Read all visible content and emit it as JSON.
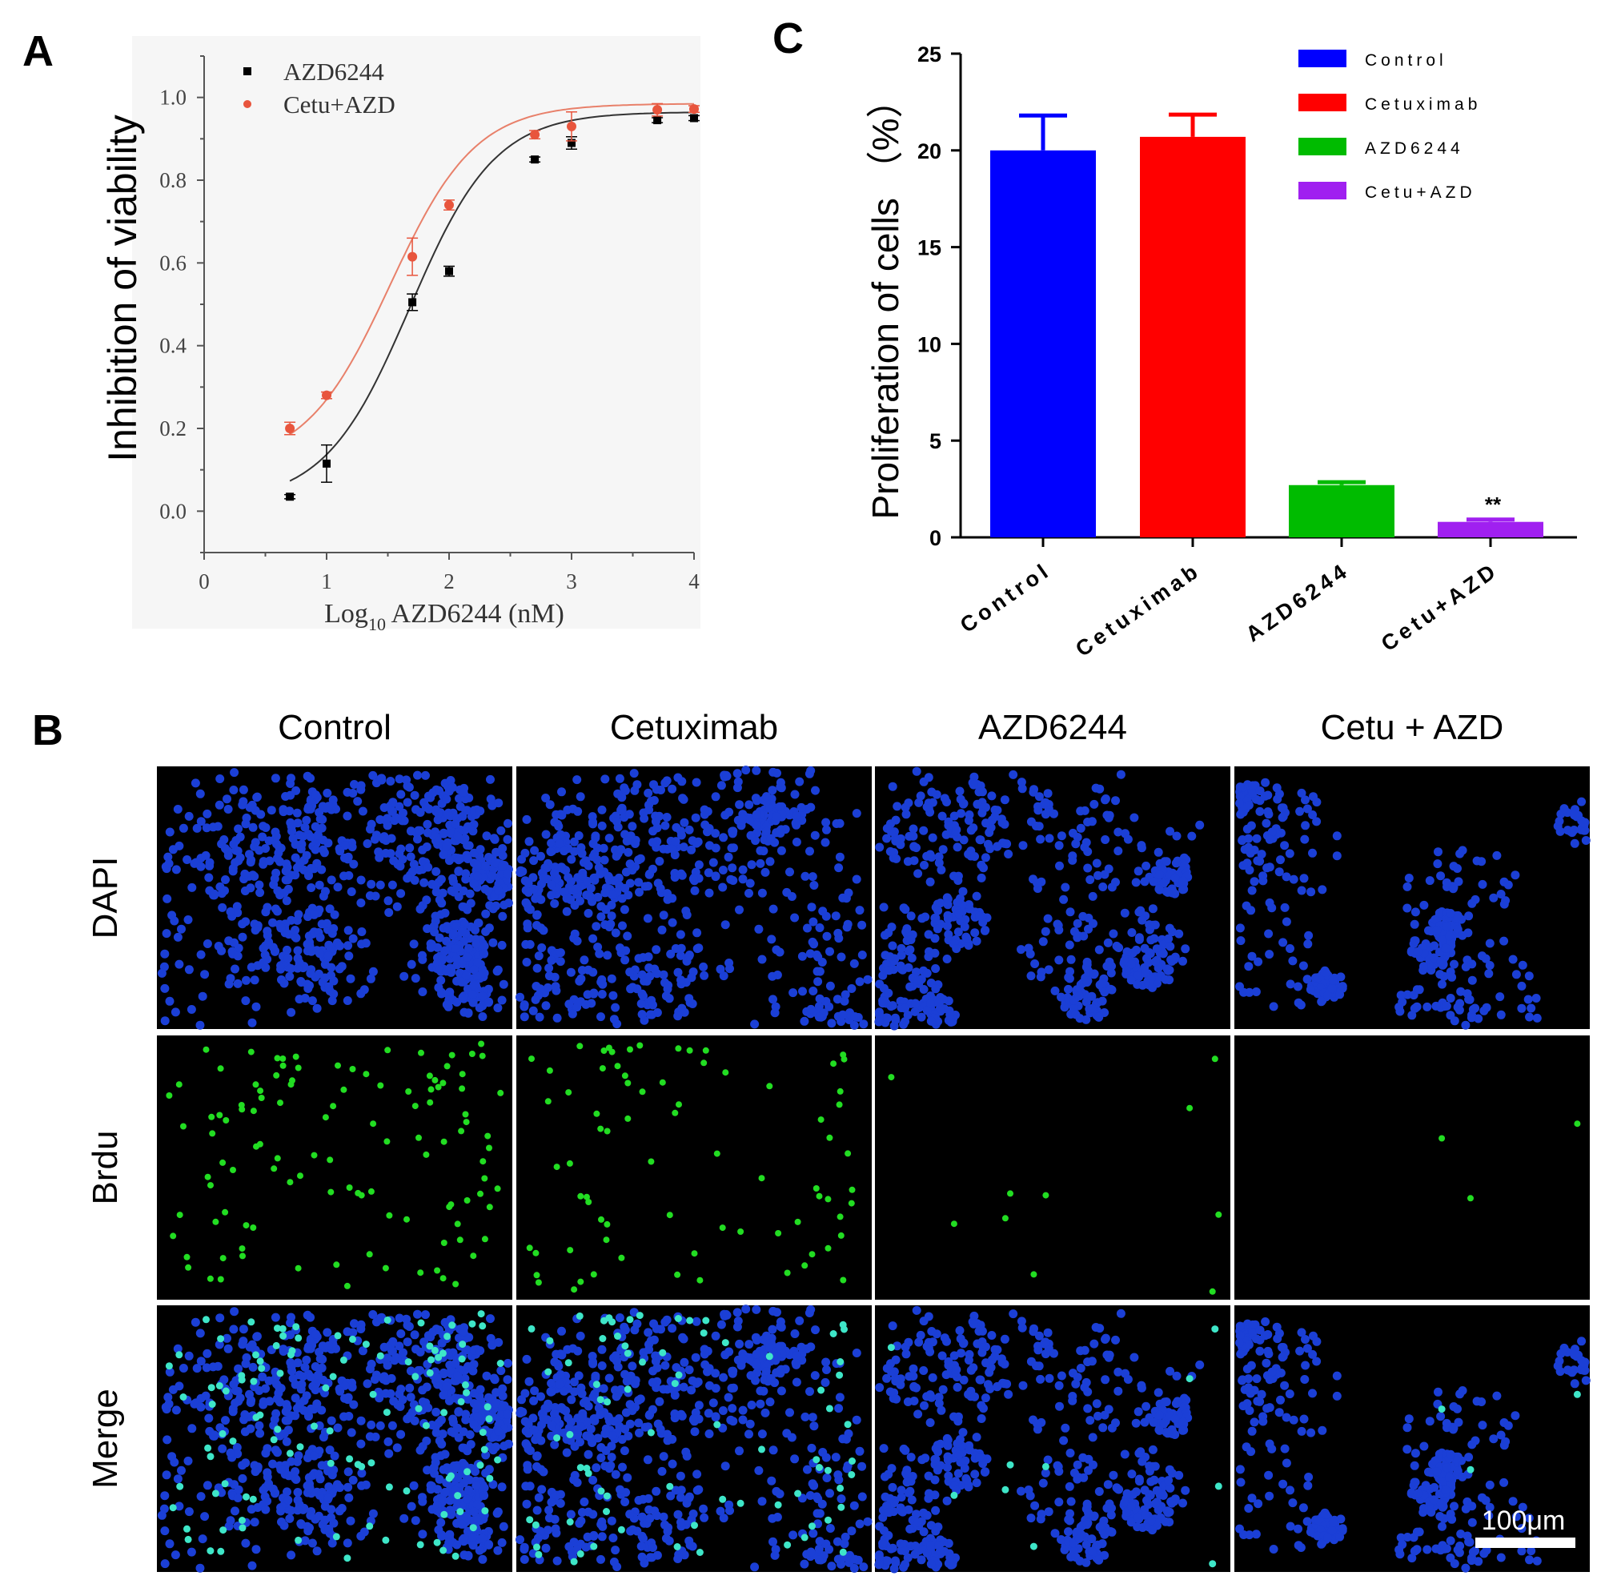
{
  "panels": {
    "a_label": "A",
    "b_label": "B",
    "c_label": "C"
  },
  "colors": {
    "azd": "#000000",
    "cetu_azd": "#e8553d",
    "control": "#0000ff",
    "cetuximab": "#ff0000",
    "azd6244_bar": "#00bb00",
    "cetu_azd_bar": "#a020f0",
    "dapi": "#1b3fd6",
    "brdu": "#22dd22"
  },
  "chart_data": [
    {
      "type": "scatter",
      "panel": "A",
      "xlabel_main": "Log",
      "xlabel_sub": "10",
      "xlabel_rest": " AZD6244 (nM)",
      "ylabel": "Inhibition of viability",
      "xlim": [
        0,
        4
      ],
      "ylim": [
        -0.1,
        1.1
      ],
      "xticks": [
        "0",
        "1",
        "2",
        "3",
        "4"
      ],
      "yticks": [
        "0.0",
        "0.2",
        "0.4",
        "0.6",
        "0.8",
        "1.0"
      ],
      "legend_position": "top-left",
      "series": [
        {
          "name": "AZD6244",
          "marker": "square",
          "x": [
            0.7,
            1.0,
            1.7,
            2.0,
            2.7,
            3.0,
            3.7,
            4.0
          ],
          "y": [
            0.035,
            0.115,
            0.505,
            0.58,
            0.85,
            0.89,
            0.945,
            0.95
          ],
          "err": [
            0.005,
            0.045,
            0.02,
            0.012,
            0.006,
            0.015,
            0.006,
            0.006
          ]
        },
        {
          "name": "Cetu+AZD",
          "marker": "circle",
          "x": [
            0.7,
            1.0,
            1.7,
            2.0,
            2.7,
            3.0,
            3.7,
            4.0
          ],
          "y": [
            0.2,
            0.28,
            0.615,
            0.74,
            0.91,
            0.93,
            0.97,
            0.972
          ],
          "err": [
            0.015,
            0.008,
            0.045,
            0.012,
            0.01,
            0.035,
            0.015,
            0.008
          ]
        }
      ]
    },
    {
      "type": "bar",
      "panel": "C",
      "ylabel": "Proliferation of cells （%）",
      "categories": [
        "Control",
        "Cetuximab",
        "AZD6244",
        "Cetu+AZD"
      ],
      "values": [
        20.0,
        20.7,
        2.7,
        0.8
      ],
      "err": [
        1.8,
        1.15,
        0.15,
        0.12
      ],
      "annotations": [
        "",
        "",
        "",
        "**"
      ],
      "ylim": [
        0,
        25
      ],
      "yticks": [
        "0",
        "5",
        "10",
        "15",
        "20",
        "25"
      ],
      "legend_position": "top-right",
      "legend": [
        "Control",
        "Cetuximab",
        "AZD6244",
        "Cetu+AZD"
      ]
    }
  ],
  "micrographs": {
    "columns": [
      "Control",
      "Cetuximab",
      "AZD6244",
      "Cetu + AZD"
    ],
    "rows": [
      "DAPI",
      "Brdu",
      "Merge"
    ],
    "scale_bar": "100μm",
    "dapi_density": [
      0.85,
      0.72,
      0.55,
      0.32
    ],
    "brdu_density": [
      0.75,
      0.5,
      0.06,
      0.01
    ]
  }
}
